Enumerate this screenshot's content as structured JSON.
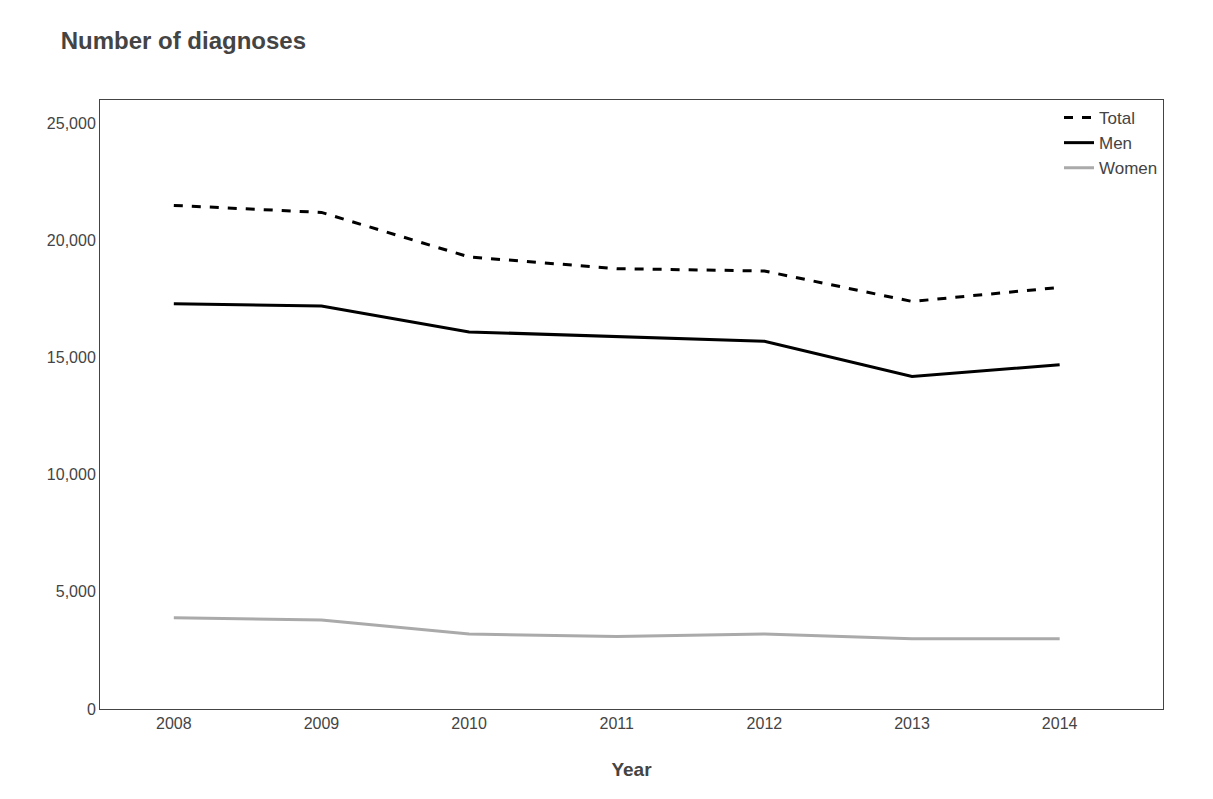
{
  "chart_data": {
    "type": "line",
    "title": "Number of diagnoses",
    "xlabel": "Year",
    "x": [
      2008,
      2009,
      2010,
      2011,
      2012,
      2013,
      2014
    ],
    "series": [
      {
        "name": "Total",
        "color": "#000000",
        "line_style": "dashed",
        "values": [
          21500,
          21200,
          19300,
          18800,
          18700,
          17400,
          18000
        ]
      },
      {
        "name": "Men",
        "color": "#000000",
        "line_style": "solid",
        "values": [
          17300,
          17200,
          16100,
          15900,
          15700,
          14200,
          14700
        ]
      },
      {
        "name": "Women",
        "color": "#aaaaaa",
        "line_style": "solid",
        "values": [
          3900,
          3800,
          3200,
          3100,
          3200,
          3000,
          3000
        ]
      }
    ],
    "xlim": [
      2007.5,
      2014.7
    ],
    "xticks": [
      2008,
      2009,
      2010,
      2011,
      2012,
      2013,
      2014
    ],
    "ylim": [
      0,
      26000
    ],
    "yticks": [
      0,
      {
        "value": 5000,
        "label": "5,000"
      },
      {
        "value": 10000,
        "label": "10,000"
      },
      {
        "value": 15000,
        "label": "15,000"
      },
      {
        "value": 20000,
        "label": "20,000"
      },
      {
        "value": 25000,
        "label": "25,000"
      }
    ],
    "grid": false,
    "legend": "upper right"
  }
}
